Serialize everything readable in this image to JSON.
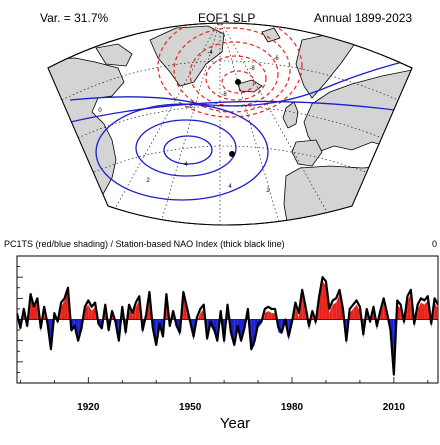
{
  "map": {
    "var_label": "Var. = 31.7%",
    "title": "EOF1 SLP",
    "period": "Annual 1899-2023",
    "contour_labels": [
      "-4",
      "-6",
      "-8",
      "-8",
      "-6",
      "2",
      "2",
      "4",
      "4",
      "0"
    ]
  },
  "timeseries": {
    "header": "PC1TS (red/blue shading) / Station-based NAO Index (thick black line)",
    "header_right": "0",
    "colors": {
      "positive": "#e8231c",
      "negative": "#1b1fd0",
      "line": "#000000"
    }
  },
  "chart_data": {
    "type": "area",
    "title": "PC1TS (red/blue shading) / Station-based NAO Index (thick black line)",
    "xlabel": "Year",
    "ylabel": "",
    "xlim": [
      1899,
      2023
    ],
    "ylim": [
      -3,
      3
    ],
    "xticks": [
      1920,
      1950,
      1980,
      2010
    ],
    "series": [
      {
        "name": "PC1TS (red/blue shading)",
        "x": [
          1899,
          1900,
          1901,
          1902,
          1903,
          1904,
          1905,
          1906,
          1907,
          1908,
          1909,
          1910,
          1911,
          1912,
          1913,
          1914,
          1915,
          1916,
          1917,
          1918,
          1919,
          1920,
          1921,
          1922,
          1923,
          1924,
          1925,
          1926,
          1927,
          1928,
          1929,
          1930,
          1931,
          1932,
          1933,
          1934,
          1935,
          1936,
          1937,
          1938,
          1939,
          1940,
          1941,
          1942,
          1943,
          1944,
          1945,
          1946,
          1947,
          1948,
          1949,
          1950,
          1951,
          1952,
          1953,
          1954,
          1955,
          1956,
          1957,
          1958,
          1959,
          1960,
          1961,
          1962,
          1963,
          1964,
          1965,
          1966,
          1967,
          1968,
          1969,
          1970,
          1971,
          1972,
          1973,
          1974,
          1975,
          1976,
          1977,
          1978,
          1979,
          1980,
          1981,
          1982,
          1983,
          1984,
          1985,
          1986,
          1987,
          1988,
          1989,
          1990,
          1991,
          1992,
          1993,
          1994,
          1995,
          1996,
          1997,
          1998,
          1999,
          2000,
          2001,
          2002,
          2003,
          2004,
          2005,
          2006,
          2007,
          2008,
          2009,
          2010,
          2011,
          2012,
          2013,
          2014,
          2015,
          2016,
          2017,
          2018,
          2019,
          2020,
          2021,
          2022,
          2023
        ],
        "values": [
          0.2,
          -0.5,
          0.3,
          -0.4,
          1.0,
          0.5,
          0.8,
          -0.6,
          0.4,
          -0.3,
          -1.2,
          0.2,
          -0.2,
          0.6,
          0.9,
          1.4,
          -0.6,
          -0.4,
          -0.9,
          -0.6,
          0.5,
          0.7,
          0.4,
          0.6,
          -0.3,
          -0.5,
          0.5,
          -0.6,
          0.3,
          -0.2,
          -0.9,
          0.4,
          -0.8,
          0.5,
          0.2,
          0.6,
          0.9,
          -0.7,
          0.1,
          1.1,
          -0.5,
          -1.1,
          -0.3,
          -0.9,
          1.0,
          -0.4,
          0.2,
          -0.4,
          -0.8,
          1.1,
          0.4,
          -0.2,
          -1.0,
          -0.1,
          0.3,
          0.5,
          -1.0,
          -0.3,
          -0.6,
          -1.1,
          0.2,
          -1.2,
          0.5,
          -0.8,
          -1.3,
          -0.5,
          -1.1,
          -0.6,
          0.3,
          -1.5,
          -1.2,
          -0.4,
          -0.2,
          0.3,
          0.4,
          0.3,
          0.3,
          -0.6,
          -0.7,
          -0.2,
          -1.0,
          -0.3,
          0.6,
          0.1,
          1.2,
          0.4,
          -0.5,
          0.2,
          -0.3,
          0.9,
          1.8,
          1.6,
          0.3,
          0.7,
          0.8,
          1.2,
          0.3,
          -1.2,
          0.3,
          0.5,
          0.7,
          0.4,
          -0.9,
          0.3,
          -0.2,
          0.4,
          -0.5,
          0.2,
          0.8,
          0.1,
          -0.6,
          -2.7,
          0.7,
          0.5,
          -0.3,
          0.9,
          1.2,
          -0.4,
          0.5,
          0.8,
          0.7,
          0.9,
          -0.4,
          0.8,
          0.5
        ],
        "positive_color": "#e8231c",
        "negative_color": "#1b1fd0"
      },
      {
        "name": "Station-based NAO Index (thick black line)",
        "x": [
          1899,
          1900,
          1901,
          1902,
          1903,
          1904,
          1905,
          1906,
          1907,
          1908,
          1909,
          1910,
          1911,
          1912,
          1913,
          1914,
          1915,
          1916,
          1917,
          1918,
          1919,
          1920,
          1921,
          1922,
          1923,
          1924,
          1925,
          1926,
          1927,
          1928,
          1929,
          1930,
          1931,
          1932,
          1933,
          1934,
          1935,
          1936,
          1937,
          1938,
          1939,
          1940,
          1941,
          1942,
          1943,
          1944,
          1945,
          1946,
          1947,
          1948,
          1949,
          1950,
          1951,
          1952,
          1953,
          1954,
          1955,
          1956,
          1957,
          1958,
          1959,
          1960,
          1961,
          1962,
          1963,
          1964,
          1965,
          1966,
          1967,
          1968,
          1969,
          1970,
          1971,
          1972,
          1973,
          1974,
          1975,
          1976,
          1977,
          1978,
          1979,
          1980,
          1981,
          1982,
          1983,
          1984,
          1985,
          1986,
          1987,
          1988,
          1989,
          1990,
          1991,
          1992,
          1993,
          1994,
          1995,
          1996,
          1997,
          1998,
          1999,
          2000,
          2001,
          2002,
          2003,
          2004,
          2005,
          2006,
          2007,
          2008,
          2009,
          2010,
          2011,
          2012,
          2013,
          2014,
          2015,
          2016,
          2017,
          2018,
          2019,
          2020,
          2021,
          2022,
          2023
        ],
        "values": [
          0.3,
          -0.4,
          0.5,
          -0.3,
          1.2,
          0.6,
          1.0,
          -0.4,
          0.6,
          -0.2,
          -1.4,
          0.3,
          -0.1,
          0.8,
          1.0,
          1.5,
          -0.5,
          -0.3,
          -1.0,
          -0.4,
          0.6,
          0.9,
          0.6,
          0.8,
          -0.2,
          -0.4,
          0.7,
          -0.5,
          0.4,
          -0.1,
          -1.0,
          0.6,
          -0.6,
          0.7,
          0.3,
          0.8,
          1.1,
          -0.5,
          0.2,
          1.3,
          -0.4,
          -1.2,
          -0.2,
          -0.8,
          1.2,
          -0.3,
          0.4,
          -0.3,
          -0.6,
          1.3,
          0.6,
          -0.1,
          -0.8,
          0.1,
          0.5,
          0.7,
          -0.9,
          -0.1,
          -0.4,
          -1.0,
          0.4,
          -1.0,
          0.7,
          -0.6,
          -1.2,
          -0.3,
          -1.0,
          -0.4,
          0.5,
          -1.4,
          -1.0,
          -0.2,
          -0.1,
          0.5,
          0.6,
          0.5,
          0.5,
          -0.4,
          -0.6,
          0.0,
          -0.8,
          -0.1,
          0.8,
          0.3,
          1.4,
          0.6,
          -0.3,
          0.4,
          -0.1,
          1.1,
          2.0,
          1.8,
          0.5,
          0.9,
          1.0,
          1.4,
          0.5,
          -1.0,
          0.5,
          0.7,
          0.9,
          0.6,
          -0.7,
          0.5,
          -0.1,
          0.6,
          -0.3,
          0.4,
          1.0,
          0.3,
          -0.5,
          -2.6,
          0.9,
          0.7,
          -0.1,
          1.1,
          1.4,
          -0.2,
          0.7,
          1.0,
          0.9,
          1.1,
          -0.2,
          1.0,
          0.7
        ],
        "color": "#000000"
      }
    ]
  }
}
